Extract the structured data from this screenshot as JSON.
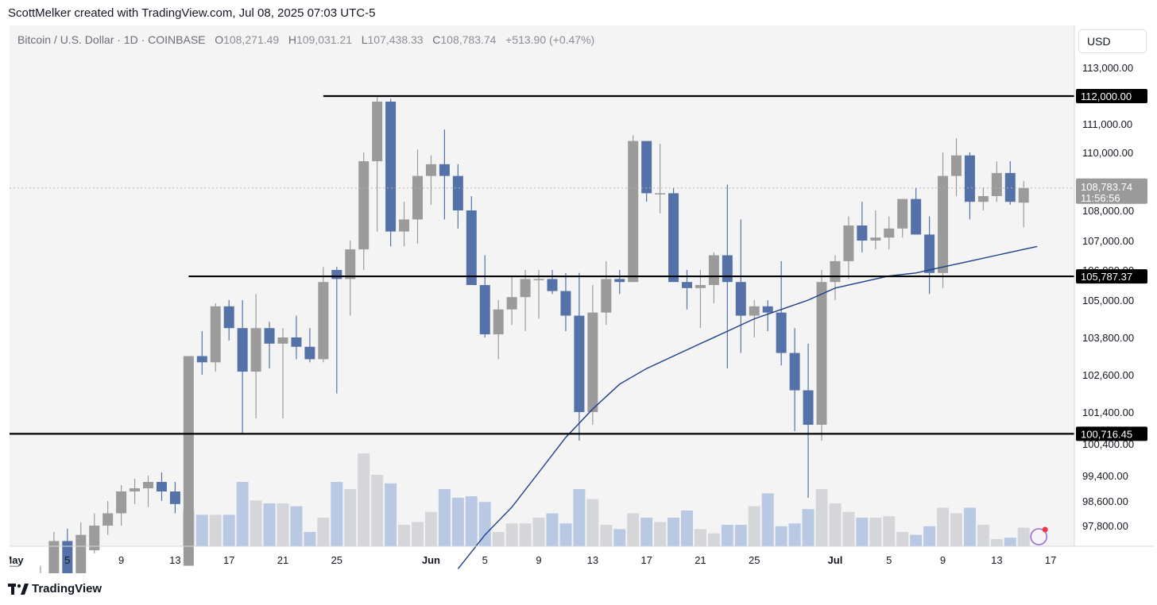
{
  "header": {
    "attribution": "ScottMelker created with TradingView.com, Jul 08, 2025 07:03 UTC-5"
  },
  "legend": {
    "symbol": "Bitcoin / U.S. Dollar · 1D · COINBASE",
    "o_label": "O",
    "o_value": "108,271.49",
    "h_label": "H",
    "h_value": "109,031.21",
    "l_label": "L",
    "l_value": "107,438.33",
    "c_label": "C",
    "c_value": "108,783.74",
    "change": "+513.90 (+0.47%)"
  },
  "currency_button": "USD",
  "footer": {
    "brand": "TradingView"
  },
  "colors": {
    "up": "#9b9b9b",
    "down": "#5572a8",
    "ma": "#1c3f8a",
    "vol_up": "#d5d6d9",
    "vol_down": "#b9c9e4",
    "bg": "#f4f4f4"
  },
  "chart_data": {
    "type": "candlestick",
    "yaxis_ticks": [
      113000,
      112000,
      111000,
      110000,
      109000,
      108000,
      107000,
      106000,
      105000,
      103800,
      102600,
      101400,
      100400,
      99400,
      98600,
      97800
    ],
    "yaxis_tick_labels": [
      "113,000.00",
      "112,000.00",
      "111,000.00",
      "110,000.00",
      "109,000.00",
      "108,000.00",
      "107,000.00",
      "106,000.00",
      "105,000.00",
      "103,800.00",
      "102,600.00",
      "101,400.00",
      "100,400.00",
      "99,400.00",
      "98,600.00",
      "97,800.00"
    ],
    "xaxis_labels": [
      {
        "label": "May",
        "bold": true,
        "bar": 0
      },
      {
        "label": "5",
        "bar": 4
      },
      {
        "label": "9",
        "bar": 8
      },
      {
        "label": "13",
        "bar": 12
      },
      {
        "label": "17",
        "bar": 16
      },
      {
        "label": "21",
        "bar": 20
      },
      {
        "label": "25",
        "bar": 24
      },
      {
        "label": "Jun",
        "bold": true,
        "bar": 31
      },
      {
        "label": "5",
        "bar": 35
      },
      {
        "label": "9",
        "bar": 39
      },
      {
        "label": "13",
        "bar": 43
      },
      {
        "label": "17",
        "bar": 47
      },
      {
        "label": "21",
        "bar": 51
      },
      {
        "label": "25",
        "bar": 55
      },
      {
        "label": "Jul",
        "bold": true,
        "bar": 61
      },
      {
        "label": "5",
        "bar": 65
      },
      {
        "label": "9",
        "bar": 69
      },
      {
        "label": "13",
        "bar": 73
      },
      {
        "label": "17",
        "bar": 77
      }
    ],
    "horizontal_levels": [
      {
        "value": 112000,
        "label": "112,000.00",
        "start_bar": 23
      },
      {
        "value": 105787.37,
        "label": "105,787.37",
        "start_bar": 13
      },
      {
        "value": 100716.45,
        "label": "100,716.45",
        "start_bar": -1
      }
    ],
    "last_price": {
      "value": 108783.74,
      "label": "108,783.74",
      "countdown": "11:56:56"
    },
    "candles": [
      {
        "o": 96500,
        "h": 96500,
        "l": 96500,
        "c": 96500,
        "v": 0
      },
      {
        "o": 94300,
        "h": 95000,
        "l": 93300,
        "c": 94000,
        "v": 0
      },
      {
        "o": 94000,
        "h": 96500,
        "l": 93500,
        "c": 96000,
        "v": 0
      },
      {
        "o": 96000,
        "h": 97600,
        "l": 95800,
        "c": 97300,
        "v": 0
      },
      {
        "o": 97300,
        "h": 97700,
        "l": 95600,
        "c": 96200,
        "v": 0
      },
      {
        "o": 96200,
        "h": 97900,
        "l": 95900,
        "c": 97500,
        "v": 0
      },
      {
        "o": 97000,
        "h": 98200,
        "l": 96900,
        "c": 97800,
        "v": 0
      },
      {
        "o": 97800,
        "h": 98600,
        "l": 97500,
        "c": 98200,
        "v": 0
      },
      {
        "o": 98200,
        "h": 99100,
        "l": 97800,
        "c": 98900,
        "v": 0
      },
      {
        "o": 98900,
        "h": 99300,
        "l": 98500,
        "c": 99000,
        "v": 0
      },
      {
        "o": 99000,
        "h": 99400,
        "l": 98400,
        "c": 99200,
        "v": 0
      },
      {
        "o": 99200,
        "h": 99500,
        "l": 98600,
        "c": 98900,
        "v": 0
      },
      {
        "o": 98900,
        "h": 99200,
        "l": 98200,
        "c": 98500,
        "v": 0
      },
      {
        "o": 96500,
        "h": 103200,
        "l": 96500,
        "c": 103200,
        "v": 0.25
      },
      {
        "o": 103200,
        "h": 104000,
        "l": 102600,
        "c": 103000,
        "v": 0.22
      },
      {
        "o": 103000,
        "h": 104900,
        "l": 102700,
        "c": 104800,
        "v": 0.22
      },
      {
        "o": 104800,
        "h": 105000,
        "l": 103700,
        "c": 104100,
        "v": 0.22
      },
      {
        "o": 104100,
        "h": 105000,
        "l": 100700,
        "c": 102700,
        "v": 0.45
      },
      {
        "o": 102700,
        "h": 105200,
        "l": 101200,
        "c": 104100,
        "v": 0.32
      },
      {
        "o": 104100,
        "h": 104300,
        "l": 102800,
        "c": 103600,
        "v": 0.3
      },
      {
        "o": 103600,
        "h": 104100,
        "l": 101200,
        "c": 103800,
        "v": 0.3
      },
      {
        "o": 103800,
        "h": 104500,
        "l": 103100,
        "c": 103500,
        "v": 0.28
      },
      {
        "o": 103500,
        "h": 104100,
        "l": 103000,
        "c": 103100,
        "v": 0.1
      },
      {
        "o": 103100,
        "h": 106100,
        "l": 103000,
        "c": 105600,
        "v": 0.2
      },
      {
        "o": 106000,
        "h": 106100,
        "l": 102000,
        "c": 105700,
        "v": 0.45
      },
      {
        "o": 105700,
        "h": 107000,
        "l": 104500,
        "c": 106700,
        "v": 0.4
      },
      {
        "o": 106700,
        "h": 110000,
        "l": 106000,
        "c": 109700,
        "v": 0.65
      },
      {
        "o": 109700,
        "h": 112000,
        "l": 107300,
        "c": 111800,
        "v": 0.5
      },
      {
        "o": 111800,
        "h": 111900,
        "l": 106800,
        "c": 107300,
        "v": 0.44
      },
      {
        "o": 107300,
        "h": 108300,
        "l": 106800,
        "c": 107700,
        "v": 0.15
      },
      {
        "o": 107700,
        "h": 110100,
        "l": 106900,
        "c": 109200,
        "v": 0.17
      },
      {
        "o": 109200,
        "h": 109900,
        "l": 108200,
        "c": 109600,
        "v": 0.24
      },
      {
        "o": 109600,
        "h": 110800,
        "l": 107700,
        "c": 109200,
        "v": 0.4
      },
      {
        "o": 109200,
        "h": 109600,
        "l": 107400,
        "c": 108000,
        "v": 0.34
      },
      {
        "o": 108000,
        "h": 108500,
        "l": 105500,
        "c": 105500,
        "v": 0.35
      },
      {
        "o": 105500,
        "h": 106500,
        "l": 103800,
        "c": 103900,
        "v": 0.31
      },
      {
        "o": 103900,
        "h": 105000,
        "l": 103100,
        "c": 104700,
        "v": 0.1
      },
      {
        "o": 104700,
        "h": 105800,
        "l": 104200,
        "c": 105100,
        "v": 0.16
      },
      {
        "o": 105100,
        "h": 106000,
        "l": 104000,
        "c": 105700,
        "v": 0.16
      },
      {
        "o": 105700,
        "h": 106000,
        "l": 104400,
        "c": 105700,
        "v": 0.2
      },
      {
        "o": 105700,
        "h": 106000,
        "l": 105200,
        "c": 105300,
        "v": 0.23
      },
      {
        "o": 105300,
        "h": 105900,
        "l": 104000,
        "c": 104500,
        "v": 0.16
      },
      {
        "o": 104500,
        "h": 105900,
        "l": 100500,
        "c": 101400,
        "v": 0.4
      },
      {
        "o": 101400,
        "h": 105500,
        "l": 101000,
        "c": 104600,
        "v": 0.33
      },
      {
        "o": 104600,
        "h": 106300,
        "l": 104200,
        "c": 105700,
        "v": 0.15
      },
      {
        "o": 105700,
        "h": 106000,
        "l": 105200,
        "c": 105600,
        "v": 0.12
      },
      {
        "o": 105600,
        "h": 110600,
        "l": 105600,
        "c": 110400,
        "v": 0.23
      },
      {
        "o": 110400,
        "h": 110400,
        "l": 108300,
        "c": 108600,
        "v": 0.2
      },
      {
        "o": 108600,
        "h": 110300,
        "l": 107900,
        "c": 108600,
        "v": 0.17
      },
      {
        "o": 108600,
        "h": 108800,
        "l": 105600,
        "c": 105600,
        "v": 0.2
      },
      {
        "o": 105600,
        "h": 106000,
        "l": 104700,
        "c": 105400,
        "v": 0.25
      },
      {
        "o": 105400,
        "h": 106000,
        "l": 104100,
        "c": 105500,
        "v": 0.12
      },
      {
        "o": 105500,
        "h": 106600,
        "l": 104900,
        "c": 106500,
        "v": 0.09
      },
      {
        "o": 106500,
        "h": 108900,
        "l": 102800,
        "c": 105600,
        "v": 0.15
      },
      {
        "o": 105600,
        "h": 107700,
        "l": 103300,
        "c": 104500,
        "v": 0.15
      },
      {
        "o": 104500,
        "h": 105000,
        "l": 103800,
        "c": 104800,
        "v": 0.28
      },
      {
        "o": 104800,
        "h": 105000,
        "l": 104000,
        "c": 104600,
        "v": 0.37
      },
      {
        "o": 104600,
        "h": 106300,
        "l": 102900,
        "c": 103300,
        "v": 0.14
      },
      {
        "o": 103300,
        "h": 104100,
        "l": 100800,
        "c": 102100,
        "v": 0.16
      },
      {
        "o": 102100,
        "h": 103600,
        "l": 98700,
        "c": 101000,
        "v": 0.26
      },
      {
        "o": 101000,
        "h": 106000,
        "l": 100500,
        "c": 105600,
        "v": 0.4
      },
      {
        "o": 105600,
        "h": 106500,
        "l": 105000,
        "c": 106300,
        "v": 0.3
      },
      {
        "o": 106300,
        "h": 107800,
        "l": 105700,
        "c": 107500,
        "v": 0.24
      },
      {
        "o": 107500,
        "h": 108300,
        "l": 106600,
        "c": 107000,
        "v": 0.2
      },
      {
        "o": 107000,
        "h": 108000,
        "l": 106700,
        "c": 107100,
        "v": 0.2
      },
      {
        "o": 107100,
        "h": 107800,
        "l": 106700,
        "c": 107400,
        "v": 0.21
      },
      {
        "o": 107400,
        "h": 108400,
        "l": 107100,
        "c": 108400,
        "v": 0.1
      },
      {
        "o": 108400,
        "h": 108800,
        "l": 107200,
        "c": 107200,
        "v": 0.08
      },
      {
        "o": 107200,
        "h": 107800,
        "l": 105200,
        "c": 105900,
        "v": 0.14
      },
      {
        "o": 105900,
        "h": 110000,
        "l": 105400,
        "c": 109200,
        "v": 0.27
      },
      {
        "o": 109200,
        "h": 110500,
        "l": 108500,
        "c": 109900,
        "v": 0.23
      },
      {
        "o": 109900,
        "h": 110000,
        "l": 107700,
        "c": 108300,
        "v": 0.27
      },
      {
        "o": 108300,
        "h": 108800,
        "l": 108000,
        "c": 108500,
        "v": 0.15
      },
      {
        "o": 108500,
        "h": 109700,
        "l": 108300,
        "c": 109300,
        "v": 0.05
      },
      {
        "o": 109300,
        "h": 109700,
        "l": 108200,
        "c": 108300,
        "v": 0.06
      },
      {
        "o": 108271.49,
        "h": 109031.21,
        "l": 107438.33,
        "c": 108783.74,
        "v": 0.13
      }
    ],
    "ma_line": [
      [
        33,
        96400
      ],
      [
        35,
        97500
      ],
      [
        37,
        98400
      ],
      [
        39,
        99500
      ],
      [
        41,
        100600
      ],
      [
        43,
        101500
      ],
      [
        45,
        102300
      ],
      [
        47,
        102800
      ],
      [
        49,
        103200
      ],
      [
        51,
        103600
      ],
      [
        53,
        104000
      ],
      [
        55,
        104400
      ],
      [
        57,
        104700
      ],
      [
        59,
        105000
      ],
      [
        61,
        105400
      ],
      [
        63,
        105600
      ],
      [
        65,
        105800
      ],
      [
        67,
        105900
      ],
      [
        69,
        106100
      ],
      [
        71,
        106300
      ],
      [
        73,
        106500
      ],
      [
        75,
        106700
      ],
      [
        76,
        106800
      ]
    ]
  }
}
